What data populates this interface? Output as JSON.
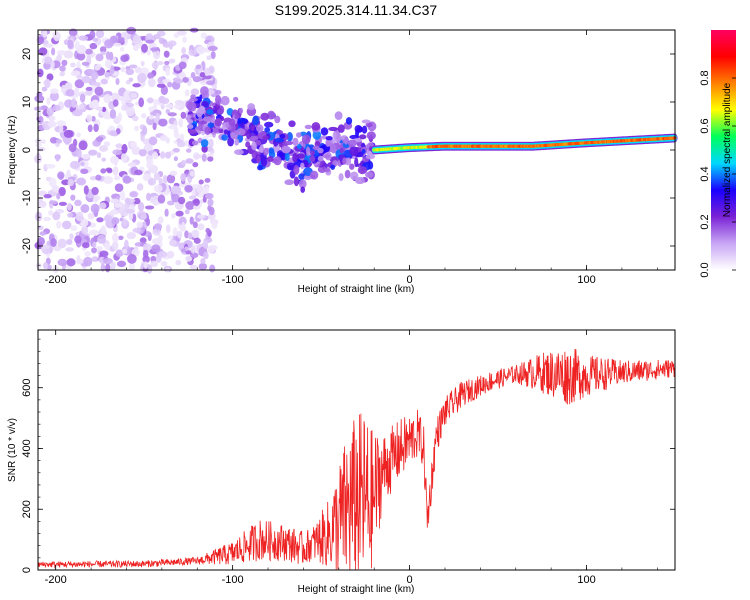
{
  "title": "S199.2025.314.11.34.C37",
  "chart_data": [
    {
      "type": "heatmap",
      "name": "spectrogram",
      "xlabel": "Height of straight line (km)",
      "ylabel": "Frequency (Hz)",
      "xlim": [
        -210,
        150
      ],
      "ylim": [
        -25,
        25
      ],
      "x_ticks": [
        -200,
        -100,
        0,
        100
      ],
      "y_ticks": [
        -20,
        -10,
        0,
        10,
        20
      ],
      "colorbar": {
        "label": "Normalized spectral amplitude",
        "range": [
          0,
          1
        ],
        "ticks": [
          "0.0",
          "0.2",
          "0.4",
          "0.6",
          "0.8"
        ],
        "colors": [
          "#ffffff",
          "#c8a6f5",
          "#7b22d6",
          "#1a00ff",
          "#00d8ff",
          "#00ff5a",
          "#ffff00",
          "#ff8000",
          "#ff0000",
          "#ff0060"
        ]
      },
      "features": {
        "noise_region_x": [
          -210,
          -125
        ],
        "noise_amplitude_range": [
          0.03,
          0.18
        ],
        "transition_region_x": [
          -125,
          -20
        ],
        "transition_center_hz": [
          [
            -125,
            7
          ],
          [
            -100,
            5
          ],
          [
            -75,
            1
          ],
          [
            -60,
            -2
          ],
          [
            -45,
            1
          ],
          [
            -30,
            0
          ],
          [
            -20,
            0
          ]
        ],
        "transition_amplitude_range": [
          0.12,
          0.4
        ],
        "carrier_region_x": [
          -20,
          150
        ],
        "carrier_center_hz": [
          [
            -20,
            0
          ],
          [
            0,
            0.5
          ],
          [
            20,
            0.8
          ],
          [
            70,
            0.8
          ],
          [
            100,
            1.5
          ],
          [
            150,
            2.5
          ]
        ],
        "carrier_core_amplitude": 0.85,
        "carrier_halfwidth_hz": 1.0
      }
    },
    {
      "type": "line",
      "name": "snr",
      "xlabel": "Height of straight line (km)",
      "ylabel": "SNR (10 * v/v)",
      "xlim": [
        -210,
        150
      ],
      "ylim": [
        0,
        790
      ],
      "x_ticks": [
        -200,
        -100,
        0,
        100
      ],
      "y_ticks": [
        0,
        200,
        400,
        600
      ],
      "color": "#ee2222",
      "baseline": [
        [
          -210,
          18
        ],
        [
          -150,
          20
        ],
        [
          -120,
          30
        ],
        [
          -100,
          55
        ],
        [
          -85,
          100
        ],
        [
          -70,
          90
        ],
        [
          -60,
          70
        ],
        [
          -45,
          120
        ],
        [
          -35,
          200
        ],
        [
          -30,
          240
        ],
        [
          -25,
          230
        ],
        [
          -22,
          210
        ],
        [
          -15,
          330
        ],
        [
          -5,
          400
        ],
        [
          5,
          450
        ],
        [
          8,
          400
        ],
        [
          10,
          160
        ],
        [
          15,
          440
        ],
        [
          20,
          520
        ],
        [
          30,
          580
        ],
        [
          45,
          620
        ],
        [
          60,
          645
        ],
        [
          75,
          650
        ],
        [
          90,
          640
        ],
        [
          100,
          640
        ],
        [
          120,
          650
        ],
        [
          150,
          665
        ]
      ],
      "noise_amplitude": [
        [
          -210,
          10
        ],
        [
          -120,
          12
        ],
        [
          -100,
          40
        ],
        [
          -85,
          70
        ],
        [
          -70,
          60
        ],
        [
          -55,
          55
        ],
        [
          -45,
          120
        ],
        [
          -35,
          260
        ],
        [
          -25,
          300
        ],
        [
          -22,
          260
        ],
        [
          -15,
          120
        ],
        [
          0,
          90
        ],
        [
          20,
          50
        ],
        [
          40,
          35
        ],
        [
          60,
          30
        ],
        [
          80,
          80
        ],
        [
          90,
          100
        ],
        [
          100,
          70
        ],
        [
          120,
          40
        ],
        [
          150,
          30
        ]
      ]
    }
  ]
}
